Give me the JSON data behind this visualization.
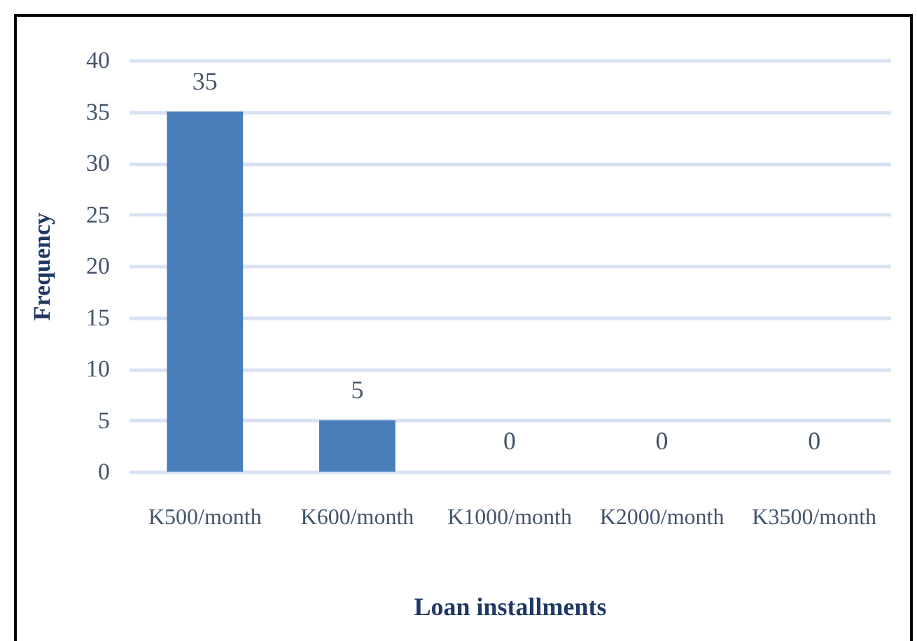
{
  "chart_data": {
    "type": "bar",
    "xlabel": "Loan installments",
    "ylabel": "Frequency",
    "categories": [
      "K500/month",
      "K600/month",
      "K1000/month",
      "K2000/month",
      "K3500/month"
    ],
    "values": [
      35,
      5,
      0,
      0,
      0
    ],
    "color": "#4a7ebb",
    "ylim": [
      0,
      40
    ],
    "yticks": [
      0,
      5,
      10,
      15,
      20,
      25,
      30,
      35,
      40
    ],
    "grid": "y",
    "data_labels": true
  }
}
